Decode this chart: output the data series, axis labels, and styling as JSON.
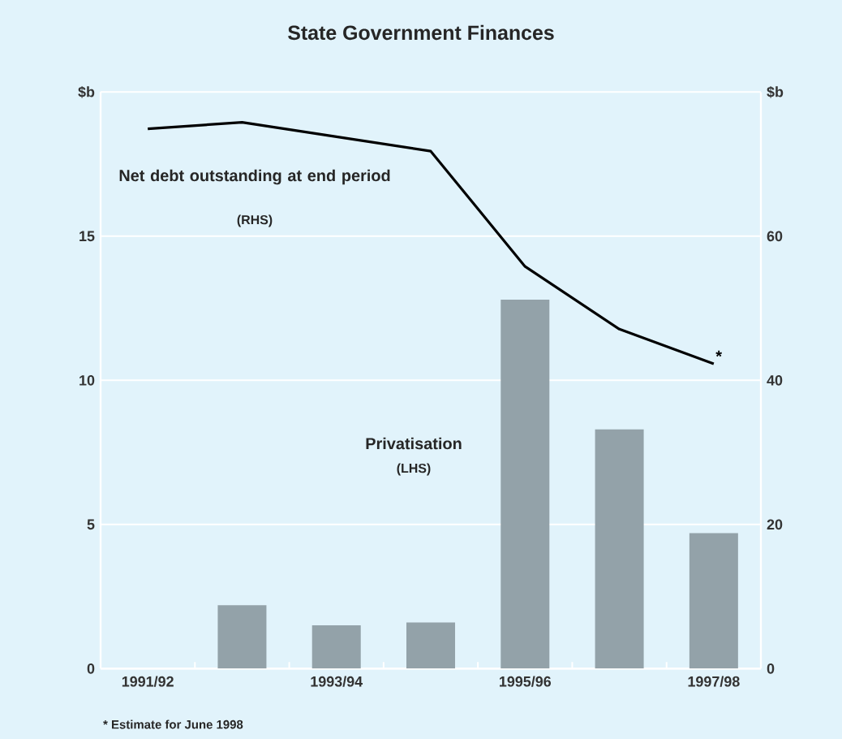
{
  "chart_data": {
    "type": "bar",
    "title": "State Government Finances",
    "categories": [
      "1991/92",
      null,
      "1993/94",
      null,
      "1995/96",
      null,
      "1997/98"
    ],
    "series": [
      {
        "name": "Privatisation",
        "color": "#93a2a9",
        "values": [
          0,
          2.2,
          1.5,
          1.6,
          12.8,
          8.3,
          4.7
        ]
      },
      {
        "name": "Net debt outstanding at end period",
        "type": "line",
        "axis": "y2",
        "color": "#000000",
        "values": [
          74.9,
          75.8,
          73.8,
          71.8,
          55.8,
          47.1,
          42.3
        ]
      }
    ],
    "ylim": [
      0,
      20
    ],
    "yticks": [
      0,
      5,
      10,
      15,
      {
        "value": 20,
        "label": "$b"
      }
    ],
    "y2lim": [
      0,
      80
    ],
    "y2ticks": [
      0,
      20,
      40,
      60,
      {
        "value": 80,
        "label": "$b"
      }
    ],
    "grid": "y",
    "legend": false,
    "marker": "none",
    "line_style": "solid",
    "annotations": [
      "(LHS)",
      "(RHS)",
      "*",
      "* Estimate for June 1998"
    ]
  }
}
